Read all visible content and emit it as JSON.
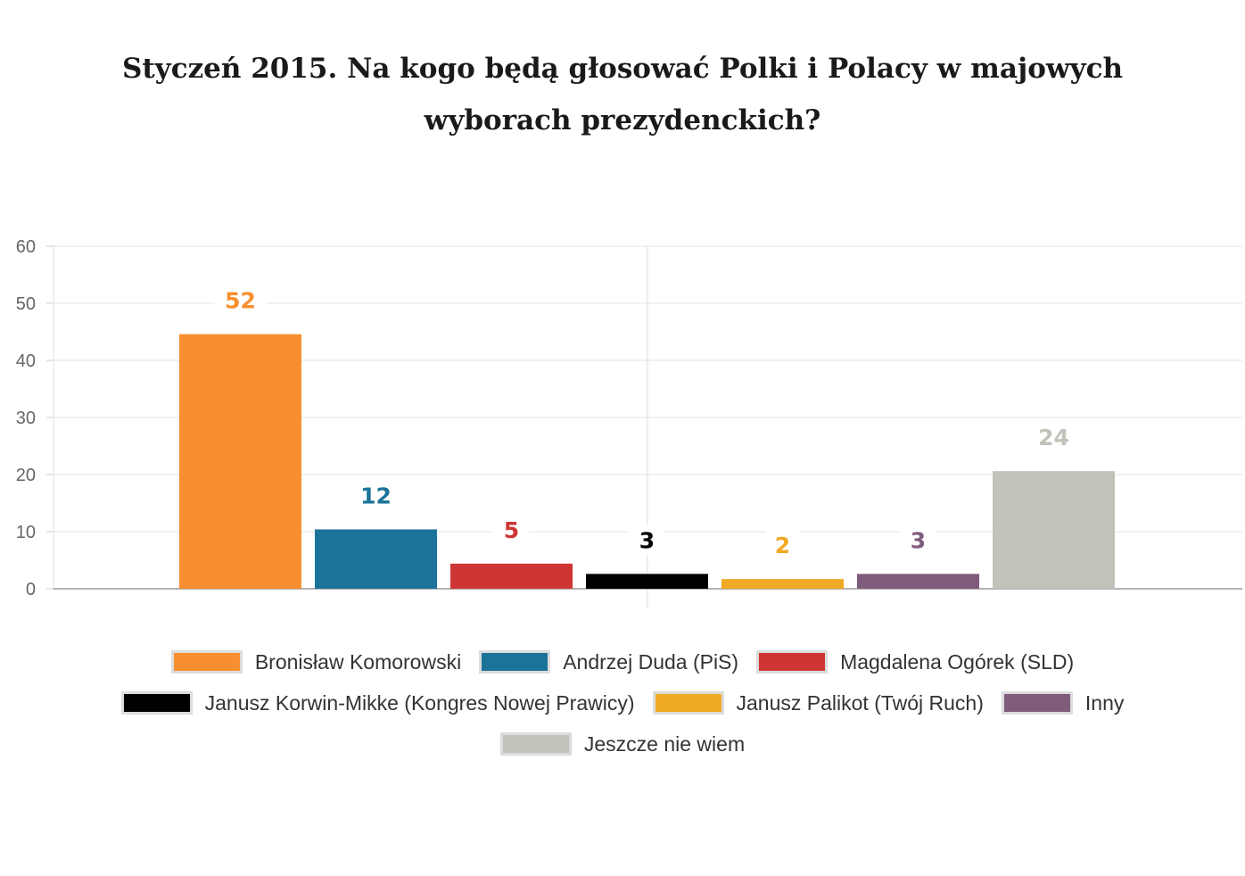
{
  "chart_data": {
    "type": "bar",
    "title": "Styczeń 2015. Na kogo będą głosować Polki i Polacy w majowych wyborach prezydenckich?",
    "ylim": [
      0,
      60
    ],
    "yticks": [
      0,
      10,
      20,
      30,
      40,
      50,
      60
    ],
    "grid": true,
    "legend_position": "bottom",
    "series": [
      {
        "name": "Bronisław Komorowski",
        "value": 44.6,
        "label": "52",
        "color": "#f78f31"
      },
      {
        "name": "Andrzej Duda (PiS)",
        "value": 10.4,
        "label": "12",
        "color": "#1c7399"
      },
      {
        "name": "Magdalena Ogórek (SLD)",
        "value": 4.4,
        "label": "5",
        "color": "#d03535"
      },
      {
        "name": "Janusz Korwin-Mikke (Kongres Nowej Prawicy)",
        "value": 2.6,
        "label": "3",
        "color": "#000000"
      },
      {
        "name": "Janusz Palikot (Twój Ruch)",
        "value": 1.7,
        "label": "2",
        "color": "#f0a924"
      },
      {
        "name": "Inny",
        "value": 2.6,
        "label": "3",
        "color": "#7f5c7c"
      },
      {
        "name": "Jeszcze nie wiem",
        "value": 20.6,
        "label": "24",
        "color": "#c3c2ba"
      }
    ]
  }
}
